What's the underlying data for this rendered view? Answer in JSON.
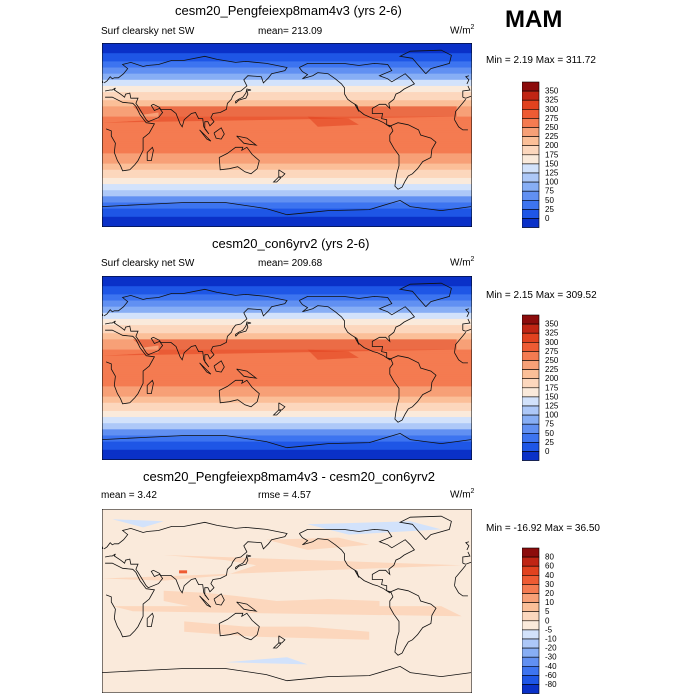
{
  "season_label": "MAM",
  "colors": {
    "abs_scale": [
      "#04128a",
      "#0a31c8",
      "#1e56e6",
      "#3d74f0",
      "#6190f2",
      "#87aef5",
      "#adc8f8",
      "#d2e2fb",
      "#faeadb",
      "#fcd7bd",
      "#fbbf98",
      "#f7a077",
      "#f47b51",
      "#ee5b33",
      "#e1421f",
      "#c02514",
      "#8c0c0c"
    ],
    "diff_scale": [
      "#04128a",
      "#0a31c8",
      "#1e56e6",
      "#3d74f0",
      "#6190f2",
      "#87aef5",
      "#adc8f8",
      "#d2e2fb",
      "#faeadb",
      "#fcd7bd",
      "#fbbf98",
      "#f7a077",
      "#f47b51",
      "#ee5b33",
      "#e1421f",
      "#c02514",
      "#8c0c0c"
    ],
    "coast": "#111111"
  },
  "chart_data": [
    {
      "type": "heatmap",
      "title": "cesm20_Pengfeiexp8mam4v3 (yrs 2-6)",
      "left_label": "Surf clearsky net SW",
      "mean_label": "mean= 213.09",
      "units": "W/m",
      "units_sup": "2",
      "minmax": "Min =   2.19 Max = 311.72",
      "min": 2.19,
      "max": 311.72,
      "levels": [
        "350",
        "325",
        "300",
        "275",
        "250",
        "225",
        "200",
        "175",
        "150",
        "125",
        "100",
        "75",
        "50",
        "25",
        "0"
      ],
      "equator_value": 290,
      "pacific_max": 311
    },
    {
      "type": "heatmap",
      "title": "cesm20_con6yrv2 (yrs 2-6)",
      "left_label": "Surf clearsky net SW",
      "mean_label": "mean= 209.68",
      "units": "W/m",
      "units_sup": "2",
      "minmax": "Min =   2.15 Max = 309.52",
      "min": 2.15,
      "max": 309.52,
      "levels": [
        "350",
        "325",
        "300",
        "275",
        "250",
        "225",
        "200",
        "175",
        "150",
        "125",
        "100",
        "75",
        "50",
        "25",
        "0"
      ],
      "equator_value": 288,
      "pacific_max": 309
    },
    {
      "type": "heatmap",
      "title": "cesm20_Pengfeiexp8mam4v3 - cesm20_con6yrv2",
      "left_label": "mean =   3.42",
      "mean_label": "rmse =   4.57",
      "units": "W/m",
      "units_sup": "2",
      "minmax": "Min = -16.92 Max =  36.50",
      "min": -16.92,
      "max": 36.5,
      "levels": [
        "80",
        "60",
        "40",
        "30",
        "20",
        "10",
        "5",
        "0",
        "-5",
        "-10",
        "-20",
        "-30",
        "-40",
        "-60",
        "-80"
      ]
    }
  ]
}
